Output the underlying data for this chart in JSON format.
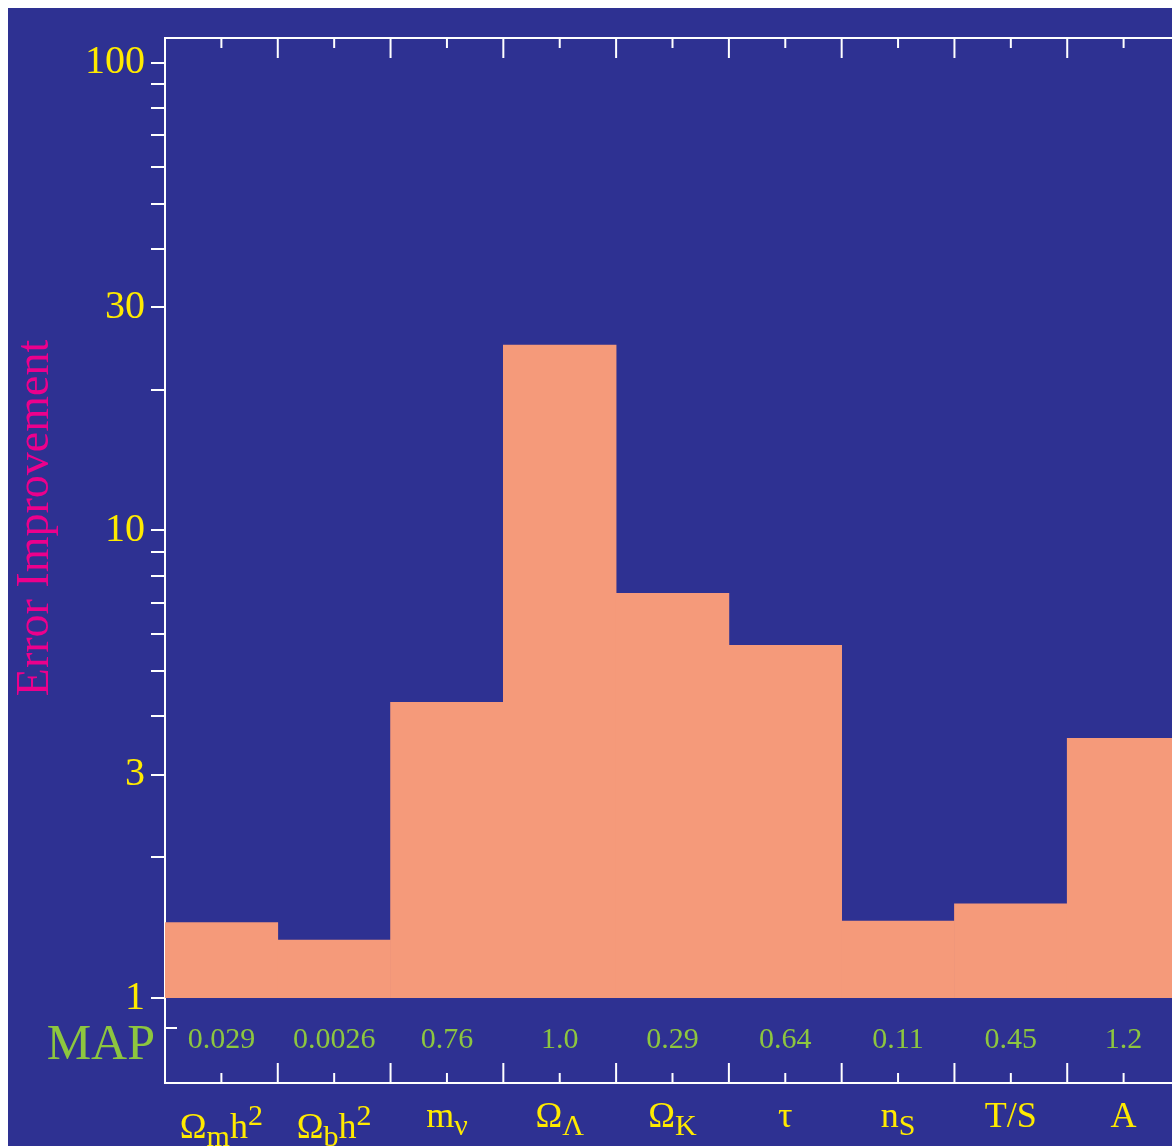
{
  "chart_data": {
    "type": "bar",
    "ylabel": "Error Improvement",
    "categories": [
      "Ω$_{m}$h$^{2}$",
      "Ω$_{b}$h$^{2}$",
      "m$_{ν}$",
      "Ω$_{Λ}$",
      "Ω$_{K}$",
      "τ",
      "n$_{S}$",
      "T/S",
      "A"
    ],
    "values": [
      1.45,
      1.33,
      4.29,
      24.9,
      7.34,
      5.68,
      1.46,
      1.59,
      3.59
    ],
    "color": "#f59a7a",
    "log": true,
    "ylim": [
      1,
      113
    ],
    "yticks": [
      {
        "value": 1,
        "label": "1"
      },
      {
        "value": 2,
        "label": null
      },
      {
        "value": 3,
        "label": "3"
      },
      {
        "value": 4,
        "label": null
      },
      {
        "value": 5,
        "label": null
      },
      {
        "value": 6,
        "label": null
      },
      {
        "value": 7,
        "label": null
      },
      {
        "value": 8,
        "label": null
      },
      {
        "value": 9,
        "label": null
      },
      {
        "value": 10,
        "label": "10"
      },
      {
        "value": 20,
        "label": null
      },
      {
        "value": 30,
        "label": "30"
      },
      {
        "value": 40,
        "label": null
      },
      {
        "value": 50,
        "label": null
      },
      {
        "value": 60,
        "label": null
      },
      {
        "value": 70,
        "label": null
      },
      {
        "value": 80,
        "label": null
      },
      {
        "value": 90,
        "label": null
      },
      {
        "value": 100,
        "label": "100"
      }
    ],
    "grid": false,
    "legend": false,
    "annotations": [
      "MAP",
      "0.029",
      "0.0026",
      "0.76",
      "1.0",
      "0.29",
      "0.64",
      "0.11",
      "0.45",
      "1.2"
    ]
  }
}
